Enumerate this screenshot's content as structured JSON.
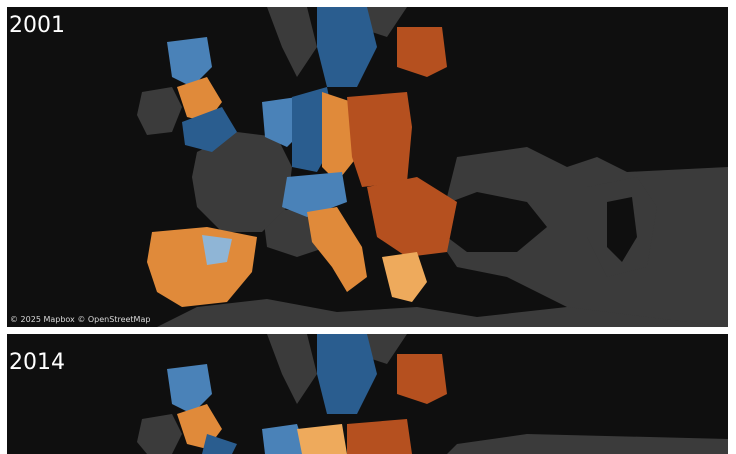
{
  "panels": [
    {
      "year": "2001"
    },
    {
      "year": "2014"
    }
  ],
  "attribution": "© 2025 Mapbox © OpenStreetMap",
  "colors": {
    "ocean": "#0f0f0f",
    "land_nodata": "#3b3b3b",
    "dark_blue": "#2a5d8f",
    "mid_blue": "#4a82b8",
    "light_blue": "#8fb5d6",
    "orange": "#e08a3a",
    "light_orange": "#eeaa5c",
    "dark_orange": "#b5501f"
  }
}
